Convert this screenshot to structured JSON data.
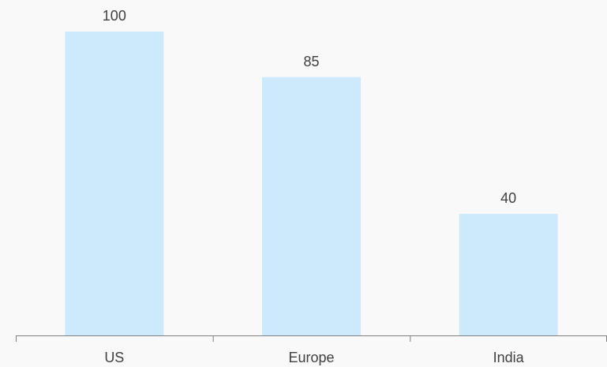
{
  "chart_data": {
    "type": "bar",
    "categories": [
      "US",
      "Europe",
      "India"
    ],
    "values": [
      100,
      85,
      40
    ],
    "data_labels": [
      "100",
      "85",
      "40"
    ],
    "title": "",
    "xlabel": "",
    "ylabel": "",
    "ylim": [
      0,
      100
    ],
    "grid": false,
    "legend": "none",
    "bar_color": "#cdeafc",
    "axis_color": "#7f7f7f",
    "label_color": "#404040",
    "background": "#f9f9f9"
  }
}
